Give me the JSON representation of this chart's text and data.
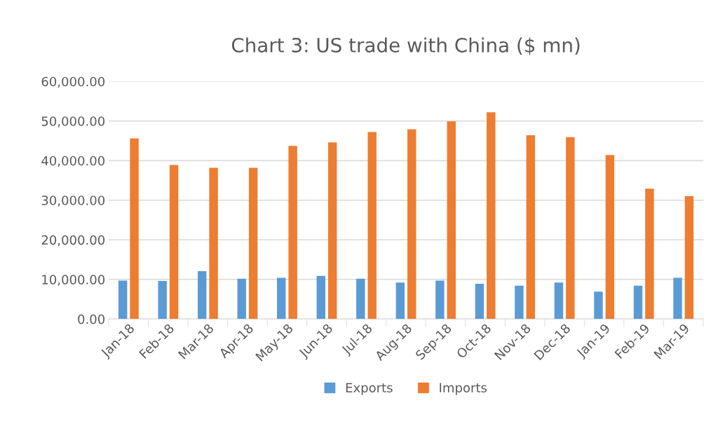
{
  "chart_data": {
    "type": "bar",
    "title": "Chart 3: US trade with China ($ mn)",
    "categories": [
      "Jan-18",
      "Feb-18",
      "Mar-18",
      "Apr-18",
      "May-18",
      "Jun-18",
      "Jul-18",
      "Aug-18",
      "Sep-18",
      "Oct-18",
      "Nov-18",
      "Dec-18",
      "Jan-19",
      "Feb-19",
      "Mar-19"
    ],
    "series": [
      {
        "name": "Exports",
        "color": "#5b9bd5",
        "values": [
          9700,
          9600,
          12100,
          10200,
          10400,
          10900,
          10200,
          9200,
          9700,
          8900,
          8400,
          9200,
          6900,
          8400,
          10400
        ]
      },
      {
        "name": "Imports",
        "color": "#ed7d31",
        "values": [
          45600,
          38900,
          38200,
          38200,
          43700,
          44600,
          47200,
          47900,
          49900,
          52200,
          46400,
          45900,
          41400,
          32900,
          31000
        ]
      }
    ],
    "ylim": [
      0,
      60000
    ],
    "yticks": [
      {
        "value": 0,
        "label": "0.00"
      },
      {
        "value": 10000,
        "label": "10,000.00"
      },
      {
        "value": 20000,
        "label": "20,000.00"
      },
      {
        "value": 30000,
        "label": "30,000.00"
      },
      {
        "value": 40000,
        "label": "40,000.00"
      },
      {
        "value": 50000,
        "label": "50,000.00"
      },
      {
        "value": 60000,
        "label": "60,000.00"
      }
    ],
    "grid": "y",
    "legend": "bottom"
  }
}
